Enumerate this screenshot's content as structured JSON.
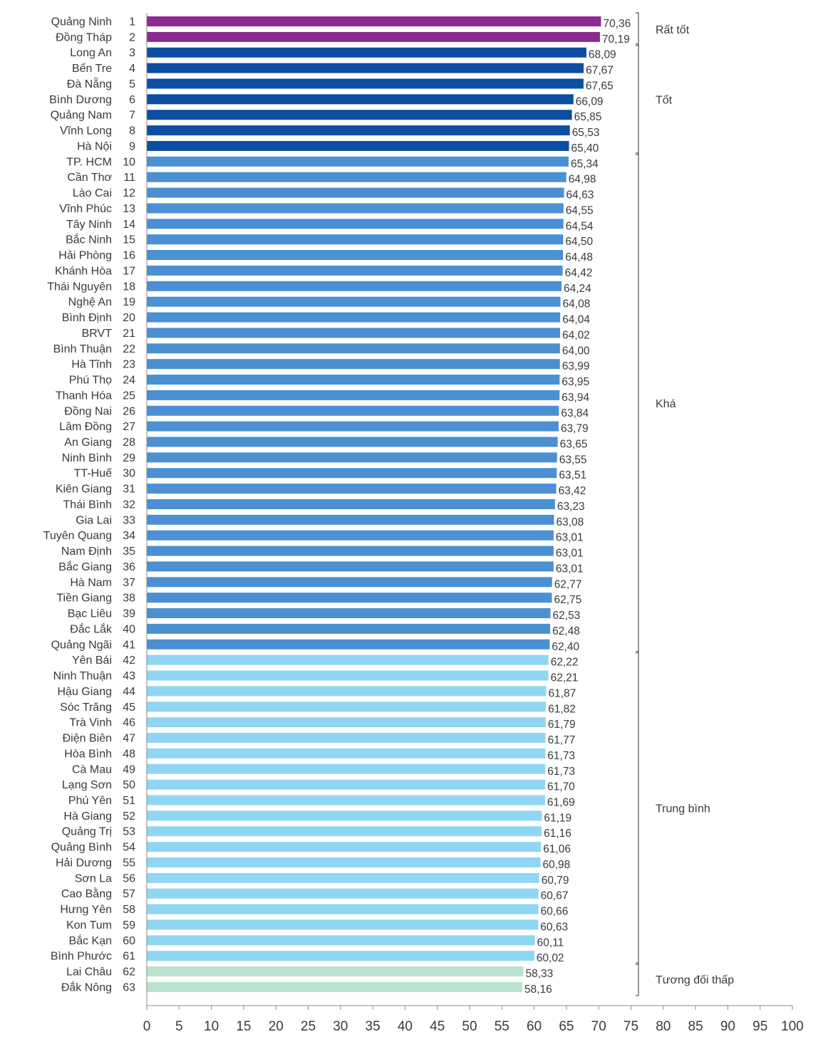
{
  "chart_data": {
    "type": "bar",
    "orientation": "horizontal",
    "title": "",
    "xlabel": "",
    "ylabel": "",
    "xlim": [
      0,
      100
    ],
    "x_ticks": [
      "0",
      "5",
      "10",
      "15",
      "20",
      "25",
      "30",
      "35",
      "40",
      "45",
      "50",
      "55",
      "60",
      "65",
      "70",
      "75",
      "80",
      "85",
      "90",
      "95",
      "100"
    ],
    "grid": false,
    "categories": [
      "Quảng Ninh",
      "Đồng Tháp",
      "Long An",
      "Bến Tre",
      "Đà Nẵng",
      "Bình Dương",
      "Quảng Nam",
      "Vĩnh Long",
      "Hà Nội",
      "TP. HCM",
      "Cần Thơ",
      "Lào Cai",
      "Vĩnh Phúc",
      "Tây Ninh",
      "Bắc Ninh",
      "Hải Phòng",
      "Khánh Hòa",
      "Thái Nguyên",
      "Nghệ An",
      "Bình Định",
      "BRVT",
      "Bình Thuận",
      "Hà Tĩnh",
      "Phú Thọ",
      "Thanh Hóa",
      "Đồng Nai",
      "Lâm Đồng",
      "An Giang",
      "Ninh Bình",
      "TT-Huế",
      "Kiên Giang",
      "Thái Bình",
      "Gia Lai",
      "Tuyên Quang",
      "Nam Định",
      "Bắc Giang",
      "Hà Nam",
      "Tiền Giang",
      "Bạc Liêu",
      "Đắc Lắk",
      "Quảng Ngãi",
      "Yên Bái",
      "Ninh Thuận",
      "Hậu Giang",
      "Sóc Trăng",
      "Trà Vinh",
      "Điện Biên",
      "Hòa Bình",
      "Cà Mau",
      "Lạng Sơn",
      "Phú Yên",
      "Hà Giang",
      "Quảng Trị",
      "Quảng Bình",
      "Hải Dương",
      "Sơn La",
      "Cao Bằng",
      "Hưng Yên",
      "Kon Tum",
      "Bắc Kạn",
      "Bình Phước",
      "Lai Châu",
      "Đắk Nông"
    ],
    "ranks": [
      "1",
      "2",
      "3",
      "4",
      "5",
      "6",
      "7",
      "8",
      "9",
      "10",
      "11",
      "12",
      "13",
      "14",
      "15",
      "16",
      "17",
      "18",
      "19",
      "20",
      "21",
      "22",
      "23",
      "24",
      "25",
      "26",
      "27",
      "28",
      "29",
      "30",
      "31",
      "32",
      "33",
      "34",
      "35",
      "36",
      "37",
      "38",
      "39",
      "40",
      "41",
      "42",
      "43",
      "44",
      "45",
      "46",
      "47",
      "48",
      "49",
      "50",
      "51",
      "52",
      "53",
      "54",
      "55",
      "56",
      "57",
      "58",
      "59",
      "60",
      "61",
      "62",
      "63"
    ],
    "values": [
      70.36,
      70.19,
      68.09,
      67.67,
      67.65,
      66.09,
      65.85,
      65.53,
      65.4,
      65.34,
      64.98,
      64.63,
      64.55,
      64.54,
      64.5,
      64.48,
      64.42,
      64.24,
      64.08,
      64.04,
      64.02,
      64.0,
      63.99,
      63.95,
      63.94,
      63.84,
      63.79,
      63.65,
      63.55,
      63.51,
      63.42,
      63.23,
      63.08,
      63.01,
      63.01,
      63.01,
      62.77,
      62.75,
      62.53,
      62.48,
      62.4,
      62.22,
      62.21,
      61.87,
      61.82,
      61.79,
      61.77,
      61.73,
      61.73,
      61.7,
      61.69,
      61.19,
      61.16,
      61.06,
      60.98,
      60.79,
      60.67,
      60.66,
      60.63,
      60.11,
      60.02,
      58.33,
      58.16
    ],
    "value_labels": [
      "70,36",
      "70,19",
      "68,09",
      "67,67",
      "67,65",
      "66,09",
      "65,85",
      "65,53",
      "65,40",
      "65,34",
      "64,98",
      "64,63",
      "64,55",
      "64,54",
      "64,50",
      "64,48",
      "64,42",
      "64,24",
      "64,08",
      "64,04",
      "64,02",
      "64,00",
      "63,99",
      "63,95",
      "63,94",
      "63,84",
      "63,79",
      "63,65",
      "63,55",
      "63,51",
      "63,42",
      "63,23",
      "63,08",
      "63,01",
      "63,01",
      "63,01",
      "62,77",
      "62,75",
      "62,53",
      "62,48",
      "62,40",
      "62,22",
      "62,21",
      "61,87",
      "61,82",
      "61,79",
      "61,77",
      "61,73",
      "61,73",
      "61,70",
      "61,69",
      "61,19",
      "61,16",
      "61,06",
      "60,98",
      "60,79",
      "60,67",
      "60,66",
      "60,63",
      "60,11",
      "60,02",
      "58,33",
      "58,16"
    ],
    "groups": [
      {
        "label": "Rất tốt",
        "start_rank": 1,
        "end_rank": 2,
        "color": "#8b2a8f"
      },
      {
        "label": "Tốt",
        "start_rank": 3,
        "end_rank": 9,
        "color": "#0b4ea2"
      },
      {
        "label": "Khá",
        "start_rank": 10,
        "end_rank": 41,
        "color": "#4a90d2"
      },
      {
        "label": "Trung bình",
        "start_rank": 42,
        "end_rank": 61,
        "color": "#8fd6f5"
      },
      {
        "label": "Tương đối thấp",
        "start_rank": 62,
        "end_rank": 63,
        "color": "#b9e2cf"
      }
    ],
    "legend": "brackets-right"
  }
}
